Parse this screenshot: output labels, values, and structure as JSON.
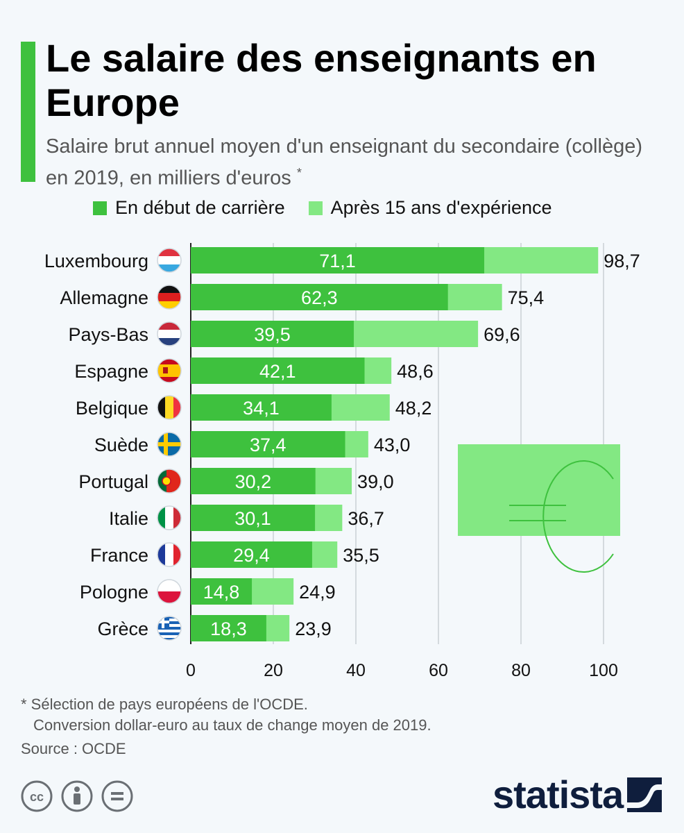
{
  "header": {
    "title": "Le salaire des enseignants en Europe",
    "subtitle": "Salaire brut annuel moyen d'un enseignant du secondaire (collège) en 2019, en milliers d'euros",
    "subtitle_star": "*"
  },
  "colors": {
    "start": "#3ec13e",
    "after15": "#83e883",
    "accent": "#3ec13e",
    "brand": "#0f1e3d"
  },
  "chart_data": {
    "type": "bar",
    "orientation": "horizontal",
    "stacked_overlap": true,
    "categories": [
      "Luxembourg",
      "Allemagne",
      "Pays-Bas",
      "Espagne",
      "Belgique",
      "Suède",
      "Portugal",
      "Italie",
      "France",
      "Pologne",
      "Grèce"
    ],
    "series": [
      {
        "name": "En début de carrière",
        "values": [
          71.1,
          62.3,
          39.5,
          42.1,
          34.1,
          37.4,
          30.2,
          30.1,
          29.4,
          14.8,
          18.3
        ],
        "labels": [
          "71,1",
          "62,3",
          "39,5",
          "42,1",
          "34,1",
          "37,4",
          "30,2",
          "30,1",
          "29,4",
          "14,8",
          "18,3"
        ]
      },
      {
        "name": "Après 15 ans d'expérience",
        "values": [
          98.7,
          75.4,
          69.6,
          48.6,
          48.2,
          43.0,
          39.0,
          36.7,
          35.5,
          24.9,
          23.9
        ],
        "labels": [
          "98,7",
          "75,4",
          "69,6",
          "48,6",
          "48,2",
          "43,0",
          "39,0",
          "36,7",
          "35,5",
          "24,9",
          "23,9"
        ]
      }
    ],
    "flags": [
      "luxembourg-flag-icon",
      "germany-flag-icon",
      "netherlands-flag-icon",
      "spain-flag-icon",
      "belgium-flag-icon",
      "sweden-flag-icon",
      "portugal-flag-icon",
      "italy-flag-icon",
      "france-flag-icon",
      "poland-flag-icon",
      "greece-flag-icon"
    ],
    "xlim": [
      0,
      100
    ],
    "xticks": [
      0,
      20,
      40,
      60,
      80,
      100
    ],
    "xtick_labels": [
      "0",
      "20",
      "40",
      "60",
      "80",
      "100"
    ],
    "grid": true,
    "legend_position": "top"
  },
  "footer": {
    "note_line1": "* Sélection de pays européens de l'OCDE.",
    "note_line2": "Conversion dollar-euro au taux de change moyen de 2019.",
    "source": "Source : OCDE",
    "brand": "statista"
  }
}
